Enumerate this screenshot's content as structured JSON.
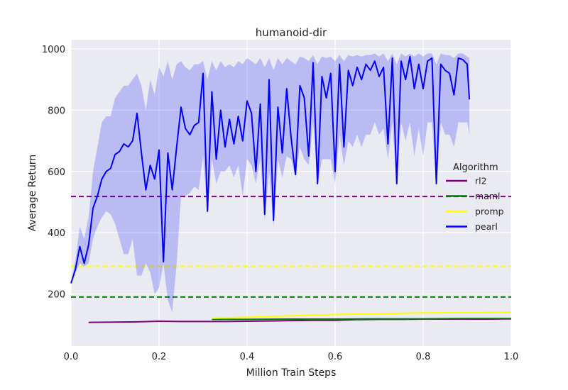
{
  "chart_data": {
    "type": "line",
    "title": "humanoid-dir",
    "xlabel": "Million Train Steps",
    "ylabel": "Average Return",
    "xlim": [
      0.0,
      1.0
    ],
    "ylim": [
      30,
      1030
    ],
    "xticks": [
      0.0,
      0.2,
      0.4,
      0.6,
      0.8,
      1.0
    ],
    "xtick_labels": [
      "0.0",
      "0.2",
      "0.4",
      "0.6",
      "0.8",
      "1.0"
    ],
    "yticks": [
      200,
      400,
      600,
      800,
      1000
    ],
    "ytick_labels": [
      "200",
      "400",
      "600",
      "800",
      "1000"
    ],
    "grid": true,
    "background": "#eaeaf2",
    "legend": {
      "title": "Algorithm",
      "placement": "center-right",
      "entries": [
        {
          "label": "rl2",
          "color": "#800080"
        },
        {
          "label": "maml",
          "color": "#008000"
        },
        {
          "label": "promp",
          "color": "#ffff00"
        },
        {
          "label": "pearl",
          "color": "#0000ff"
        }
      ]
    },
    "reference_lines": [
      {
        "series": "rl2",
        "y": 518,
        "style": "dashed",
        "color": "#800080"
      },
      {
        "series": "promp",
        "y": 290,
        "style": "dashed",
        "color": "#ffff00"
      },
      {
        "series": "maml",
        "y": 190,
        "style": "dashed",
        "color": "#008000"
      }
    ],
    "series": [
      {
        "name": "rl2",
        "color": "#800080",
        "x": [
          0.04,
          0.1,
          0.15,
          0.2,
          0.25,
          0.3,
          0.35,
          0.4,
          0.45,
          0.5,
          0.55,
          0.6,
          0.65,
          0.7,
          0.75,
          0.8,
          0.85,
          0.9,
          0.95,
          1.0
        ],
        "y": [
          107,
          108,
          109,
          111,
          110,
          110,
          110,
          111,
          112,
          113,
          114,
          114,
          116,
          117,
          117,
          118,
          118,
          118,
          118,
          119
        ]
      },
      {
        "name": "maml",
        "color": "#008000",
        "x": [
          0.32,
          0.4,
          0.5,
          0.6,
          0.7,
          0.8,
          0.9,
          1.0
        ],
        "y": [
          117,
          117,
          118,
          118,
          119,
          119,
          120,
          120
        ]
      },
      {
        "name": "promp",
        "color": "#ffff00",
        "x": [
          0.32,
          0.4,
          0.5,
          0.6,
          0.7,
          0.8,
          0.9,
          1.0
        ],
        "y": [
          121,
          124,
          129,
          133,
          136,
          138,
          139,
          141
        ]
      },
      {
        "name": "pearl",
        "color": "#0000ff",
        "x": [
          0.0,
          0.01,
          0.02,
          0.03,
          0.04,
          0.05,
          0.06,
          0.07,
          0.08,
          0.09,
          0.1,
          0.11,
          0.12,
          0.13,
          0.14,
          0.15,
          0.16,
          0.17,
          0.18,
          0.19,
          0.2,
          0.21,
          0.22,
          0.23,
          0.24,
          0.25,
          0.26,
          0.27,
          0.28,
          0.29,
          0.3,
          0.31,
          0.32,
          0.33,
          0.34,
          0.35,
          0.36,
          0.37,
          0.38,
          0.39,
          0.4,
          0.41,
          0.42,
          0.43,
          0.44,
          0.45,
          0.46,
          0.47,
          0.48,
          0.49,
          0.5,
          0.51,
          0.52,
          0.53,
          0.54,
          0.55,
          0.56,
          0.57,
          0.58,
          0.59,
          0.6,
          0.61,
          0.62,
          0.63,
          0.64,
          0.65,
          0.66,
          0.67,
          0.68,
          0.69,
          0.7,
          0.71,
          0.72,
          0.73,
          0.74,
          0.75,
          0.76,
          0.77,
          0.78,
          0.79,
          0.8,
          0.81,
          0.82,
          0.83,
          0.84,
          0.85,
          0.86,
          0.87,
          0.88,
          0.89,
          0.9,
          0.905
        ],
        "y": [
          235,
          280,
          355,
          300,
          360,
          480,
          520,
          575,
          600,
          610,
          655,
          665,
          690,
          680,
          700,
          790,
          660,
          540,
          620,
          575,
          670,
          305,
          660,
          540,
          680,
          810,
          740,
          720,
          750,
          760,
          920,
          470,
          860,
          640,
          800,
          680,
          770,
          690,
          780,
          700,
          830,
          790,
          600,
          820,
          460,
          900,
          440,
          810,
          660,
          870,
          710,
          590,
          880,
          840,
          650,
          955,
          560,
          910,
          840,
          920,
          600,
          950,
          680,
          930,
          880,
          940,
          900,
          950,
          930,
          960,
          910,
          940,
          690,
          970,
          560,
          960,
          900,
          975,
          870,
          950,
          870,
          960,
          970,
          560,
          950,
          930,
          920,
          850,
          970,
          965,
          950,
          835
        ],
        "band_lower": [
          235,
          270,
          300,
          290,
          300,
          380,
          420,
          450,
          470,
          460,
          430,
          380,
          330,
          330,
          380,
          260,
          260,
          300,
          270,
          200,
          220,
          300,
          180,
          140,
          300,
          520,
          520,
          530,
          550,
          540,
          650,
          460,
          640,
          560,
          600,
          600,
          620,
          580,
          620,
          520,
          640,
          620,
          560,
          640,
          440,
          600,
          420,
          640,
          580,
          650,
          640,
          580,
          680,
          640,
          620,
          760,
          550,
          640,
          640,
          640,
          560,
          720,
          620,
          700,
          680,
          720,
          680,
          720,
          720,
          760,
          720,
          740,
          640,
          760,
          550,
          760,
          700,
          760,
          650,
          740,
          650,
          760,
          760,
          550,
          760,
          720,
          720,
          680,
          760,
          760,
          760,
          720
        ],
        "band_upper": [
          240,
          310,
          420,
          380,
          450,
          600,
          680,
          760,
          780,
          780,
          840,
          860,
          880,
          880,
          900,
          920,
          880,
          800,
          900,
          850,
          940,
          910,
          960,
          900,
          950,
          960,
          940,
          930,
          950,
          950,
          960,
          900,
          960,
          930,
          960,
          940,
          950,
          940,
          960,
          950,
          970,
          960,
          950,
          970,
          940,
          970,
          930,
          970,
          950,
          970,
          960,
          950,
          975,
          970,
          960,
          980,
          950,
          975,
          970,
          975,
          960,
          980,
          960,
          980,
          975,
          980,
          975,
          980,
          980,
          985,
          975,
          985,
          960,
          985,
          950,
          985,
          975,
          985,
          975,
          985,
          975,
          985,
          985,
          950,
          985,
          980,
          980,
          970,
          985,
          985,
          975,
          970
        ]
      }
    ]
  }
}
